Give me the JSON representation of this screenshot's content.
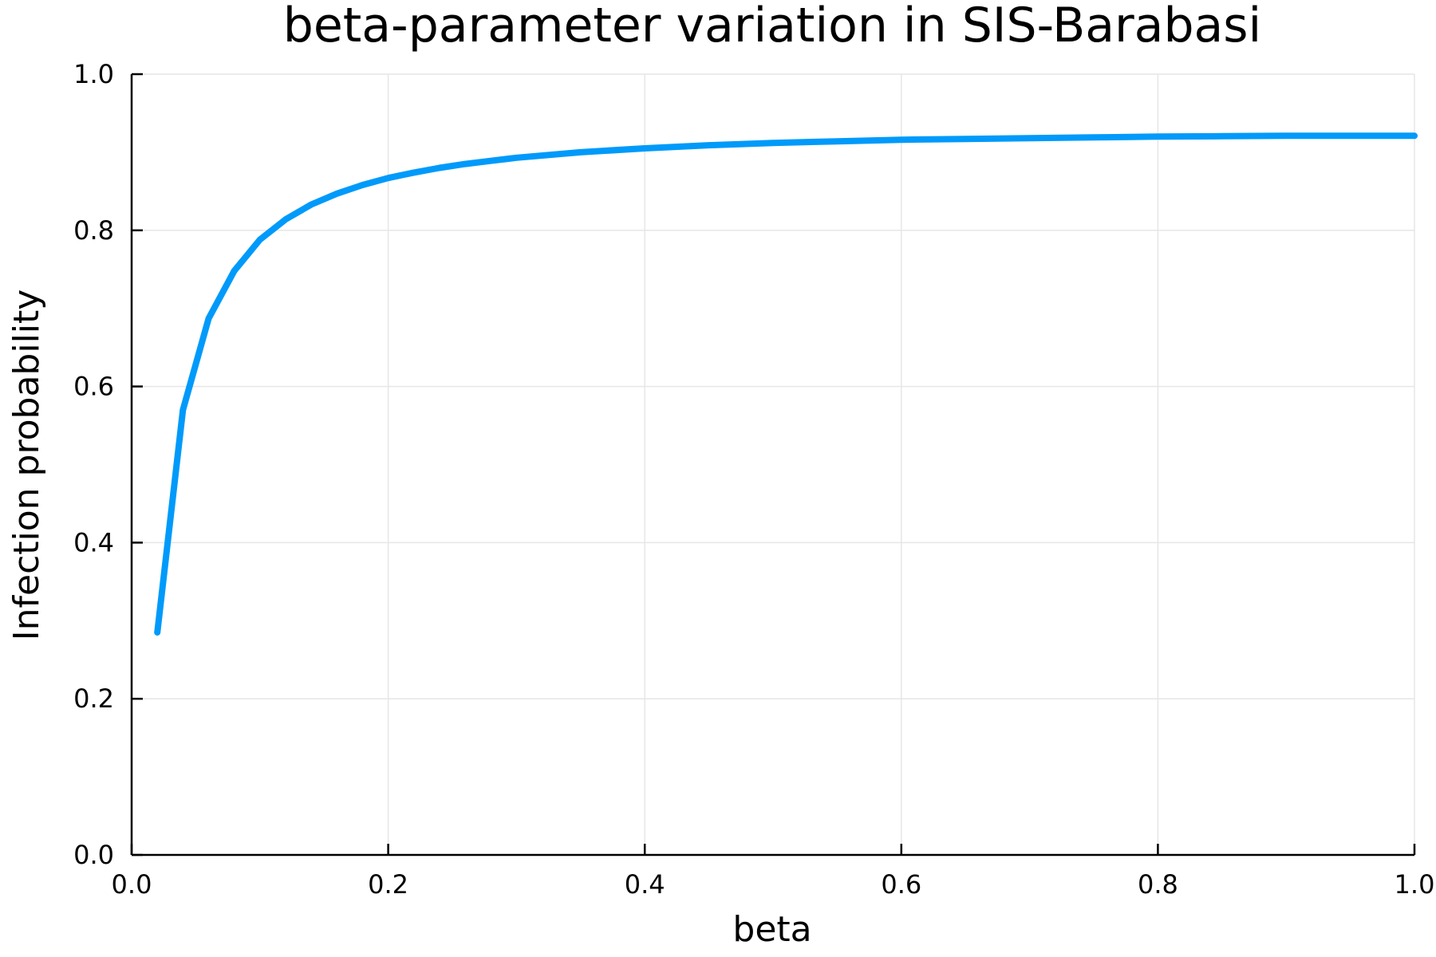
{
  "chart_data": {
    "type": "line",
    "title": "beta-parameter variation in SIS-Barabasi",
    "xlabel": "beta",
    "ylabel": "Infection probability",
    "xlim": [
      0.0,
      1.0
    ],
    "ylim": [
      0.0,
      1.0
    ],
    "xticks": [
      "0.0",
      "0.2",
      "0.4",
      "0.6",
      "0.8",
      "1.0"
    ],
    "yticks": [
      "0.0",
      "0.2",
      "0.4",
      "0.6",
      "0.8",
      "1.0"
    ],
    "grid": true,
    "legend": "none",
    "color": "#009AFA",
    "series": [
      {
        "x": [
          0.02,
          0.04,
          0.06,
          0.08,
          0.1,
          0.12,
          0.14,
          0.16,
          0.18,
          0.2,
          0.22,
          0.24,
          0.26,
          0.28,
          0.3,
          0.35,
          0.4,
          0.45,
          0.5,
          0.55,
          0.6,
          0.65,
          0.7,
          0.75,
          0.8,
          0.85,
          0.9,
          0.95,
          1.0
        ],
        "y": [
          0.285,
          0.57,
          0.687,
          0.748,
          0.788,
          0.814,
          0.833,
          0.847,
          0.858,
          0.867,
          0.874,
          0.88,
          0.885,
          0.889,
          0.893,
          0.9,
          0.905,
          0.909,
          0.912,
          0.914,
          0.916,
          0.917,
          0.918,
          0.919,
          0.92,
          0.9205,
          0.921,
          0.921,
          0.921
        ]
      }
    ]
  }
}
